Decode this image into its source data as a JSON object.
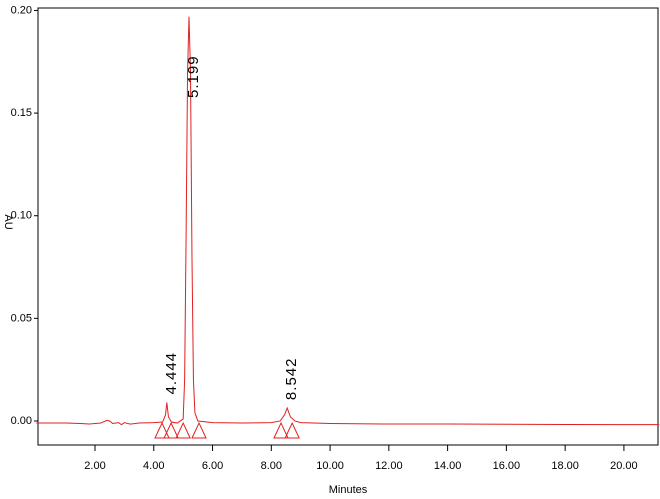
{
  "chart_data": {
    "type": "line",
    "x_label": "Minutes",
    "y_label": "AU",
    "x": [
      0,
      1,
      1.5,
      1.8,
      2.0,
      2.2,
      2.4,
      2.5,
      2.6,
      2.8,
      2.9,
      3.0,
      3.2,
      3.5,
      4.0,
      4.3,
      4.4,
      4.444,
      4.5,
      4.6,
      4.8,
      5.0,
      5.05,
      5.1,
      5.15,
      5.199,
      5.25,
      5.3,
      5.35,
      5.4,
      5.5,
      6.0,
      7.0,
      8.0,
      8.3,
      8.45,
      8.542,
      8.65,
      8.8,
      9.0,
      10,
      12,
      14,
      16,
      18,
      20,
      21.2
    ],
    "values": [
      -0.001,
      -0.001,
      -0.0012,
      -0.0015,
      -0.0012,
      -0.001,
      0.0003,
      0.0,
      -0.0012,
      -0.0008,
      -0.0018,
      -0.0008,
      -0.0015,
      -0.001,
      -0.0008,
      -0.0005,
      0.003,
      0.009,
      0.002,
      -0.0005,
      -0.001,
      0.001,
      0.02,
      0.09,
      0.17,
      0.197,
      0.17,
      0.08,
      0.02,
      0.004,
      0.0,
      -0.0008,
      -0.001,
      -0.0008,
      0.0,
      0.003,
      0.0063,
      0.002,
      0.0,
      -0.0008,
      -0.0012,
      -0.0015,
      -0.0015,
      -0.0016,
      -0.0017,
      -0.0018,
      -0.0018
    ],
    "color": "#e02020",
    "peaks": [
      4.444,
      5.199,
      8.542
    ],
    "peak_marks": [
      4.28,
      4.59,
      5.0,
      5.54,
      8.33,
      8.71
    ],
    "xlim": [
      0.06,
      21.16
    ],
    "ylim": [
      -0.0117,
      0.2012
    ],
    "xticks": [
      {
        "value": 2,
        "label": "2.00"
      },
      {
        "value": 4,
        "label": "4.00"
      },
      {
        "value": 6,
        "label": "6.00"
      },
      {
        "value": 8,
        "label": "8.00"
      },
      {
        "value": 10,
        "label": "10.00"
      },
      {
        "value": 12,
        "label": "12.00"
      },
      {
        "value": 14,
        "label": "14.00"
      },
      {
        "value": 16,
        "label": "16.00"
      },
      {
        "value": 18,
        "label": "18.00"
      },
      {
        "value": 20,
        "label": "20.00"
      }
    ],
    "yticks": [
      {
        "value": 0,
        "label": "0.00"
      },
      {
        "value": 0.05,
        "label": "0.05"
      },
      {
        "value": 0.1,
        "label": "0.10"
      },
      {
        "value": 0.15,
        "label": "0.15"
      },
      {
        "value": 0.2,
        "label": "0.20"
      }
    ]
  }
}
